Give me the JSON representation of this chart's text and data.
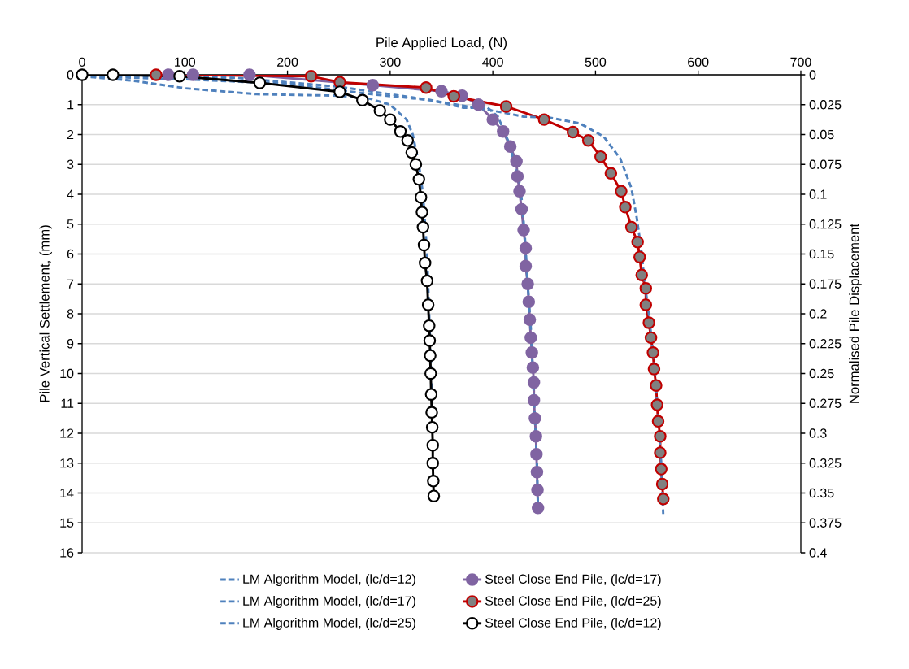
{
  "chart_data": {
    "type": "line",
    "xlabel": "Pile Applied Load, (N)",
    "ylabel": "Pile Vertical Settlement, (mm)",
    "y2label": "Normalised Pile Displacement",
    "xlim": [
      0,
      700
    ],
    "xticks": [
      0,
      100,
      200,
      300,
      400,
      500,
      600,
      700
    ],
    "ylim": [
      16,
      0
    ],
    "yticks": [
      0,
      1,
      2,
      3,
      4,
      5,
      6,
      7,
      8,
      9,
      10,
      11,
      12,
      13,
      14,
      15,
      16
    ],
    "y2lim": [
      0.4,
      0
    ],
    "y2ticks": [
      0,
      0.025,
      0.05,
      0.075,
      0.1,
      0.125,
      0.15,
      0.175,
      0.2,
      0.225,
      0.25,
      0.275,
      0.3,
      0.325,
      0.35,
      0.375,
      0.4
    ],
    "grid": "y",
    "legend": "bottom",
    "series": [
      {
        "name": "LM Algorithm Model, (lc/d=12)",
        "color": "#4f81bd",
        "marker": "none",
        "line_style": "dashed",
        "x": [
          0,
          50,
          100,
          170,
          250,
          280,
          300,
          316,
          322,
          328,
          332,
          334,
          336,
          337,
          338,
          339,
          340,
          341
        ],
        "values": [
          0.05,
          0.2,
          0.45,
          0.65,
          0.7,
          0.8,
          1.0,
          1.5,
          2.0,
          3,
          4,
          5,
          6,
          7,
          8,
          9,
          10,
          11
        ]
      },
      {
        "name": "Steel Close End Pile, (lc/d=17)",
        "color": "#8064a2",
        "marker": "circle",
        "line_style": "solid",
        "x": [
          84,
          108,
          163,
          283,
          350,
          370,
          386,
          400,
          410,
          417,
          423,
          424,
          426,
          428,
          430,
          432,
          432,
          434,
          435,
          436,
          437,
          438,
          439,
          440,
          440,
          441,
          442,
          442.5,
          443,
          443.5,
          444
        ],
        "values": [
          0,
          0,
          0,
          0.35,
          0.55,
          0.7,
          1.0,
          1.5,
          1.9,
          2.4,
          2.9,
          3.4,
          3.9,
          4.5,
          5.2,
          5.8,
          6.4,
          7.0,
          7.6,
          8.2,
          8.8,
          9.3,
          9.8,
          10.3,
          10.9,
          11.5,
          12.1,
          12.7,
          13.3,
          13.9,
          14.5
        ]
      },
      {
        "name": "LM Algorithm Model, (lc/d=17)",
        "color": "#4f81bd",
        "marker": "none",
        "line_style": "dashed",
        "x": [
          0,
          100,
          200,
          282,
          340,
          371,
          395,
          405,
          416,
          427,
          431,
          434,
          437,
          439,
          441,
          443,
          444
        ],
        "values": [
          0.05,
          0.15,
          0.3,
          0.65,
          0.85,
          1.1,
          1.1,
          1.4,
          2.3,
          3.75,
          5.3,
          7,
          8.5,
          10,
          11.5,
          13,
          14.5
        ]
      },
      {
        "name": "Steel Close End Pile, (lc/d=25)",
        "color": "#c00000",
        "marker": "circle",
        "line_style": "solid",
        "x": [
          72,
          223,
          251,
          335,
          362,
          413,
          450,
          478,
          493,
          505,
          515,
          525,
          529,
          535,
          541,
          543,
          545,
          549,
          549,
          552,
          554,
          556,
          557,
          559,
          560,
          561,
          563,
          563,
          564,
          565,
          566
        ],
        "values": [
          0,
          0.05,
          0.25,
          0.43,
          0.72,
          1.06,
          1.5,
          1.92,
          2.2,
          2.74,
          3.3,
          3.9,
          4.43,
          5.1,
          5.6,
          6.1,
          6.7,
          7.15,
          7.7,
          8.3,
          8.8,
          9.3,
          9.85,
          10.4,
          11.05,
          11.6,
          12.1,
          12.65,
          13.2,
          13.7,
          14.2
        ]
      },
      {
        "name": "LM Algorithm Model, (lc/d=25)",
        "color": "#4f81bd",
        "marker": "none",
        "line_style": "dashed",
        "x": [
          0,
          150,
          250,
          330,
          400,
          430,
          456,
          485,
          508,
          524,
          535,
          540,
          544,
          548,
          552,
          555,
          558,
          560,
          562,
          564,
          565,
          566
        ],
        "values": [
          0,
          0.1,
          0.4,
          0.8,
          1.2,
          1.4,
          1.44,
          1.63,
          2.07,
          2.8,
          3.8,
          4.75,
          5.7,
          7,
          8,
          9,
          10,
          11,
          12,
          13,
          14,
          14.7
        ]
      },
      {
        "name": "Steel Close End Pile, (lc/d=12)",
        "color": "#000000",
        "marker": "circle",
        "line_style": "solid",
        "x": [
          0,
          30,
          95,
          173,
          251,
          273,
          290,
          300,
          310,
          317,
          321,
          325,
          328,
          330,
          331,
          332,
          333,
          334,
          336,
          337,
          338,
          338.5,
          339,
          339.5,
          340,
          340.5,
          341,
          341.5,
          341.5,
          342,
          342.5
        ],
        "values": [
          0,
          0,
          0.05,
          0.27,
          0.57,
          0.85,
          1.2,
          1.5,
          1.9,
          2.2,
          2.6,
          3.0,
          3.5,
          4.1,
          4.6,
          5.1,
          5.7,
          6.3,
          6.9,
          7.7,
          8.4,
          8.9,
          9.4,
          10.0,
          10.7,
          11.3,
          11.8,
          12.4,
          13.0,
          13.6,
          14.1
        ]
      }
    ]
  }
}
